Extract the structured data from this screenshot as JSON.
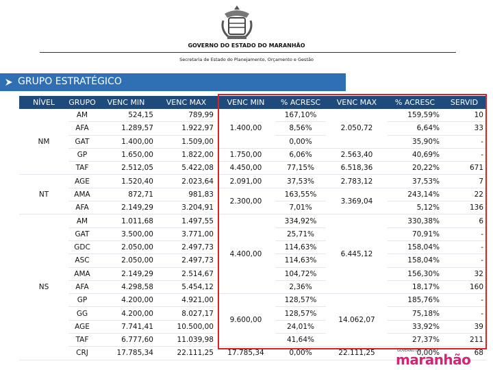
{
  "header": {
    "title": "GOVERNO DO ESTADO DO MARANHÃO",
    "subtitle": "Secretaria de Estado do Planejamento, Orçamento e Gestão"
  },
  "section": {
    "title": "GRUPO ESTRATÉGICO"
  },
  "table": {
    "columns": [
      "NÍVEL",
      "GRUPO",
      "VENC MIN",
      "VENC MAX",
      "VENC MIN",
      "% ACRESC",
      "VENC MAX",
      "% ACRESC",
      "SERVID"
    ],
    "rows": [
      [
        "NM",
        "AM",
        "524,15",
        "789,99",
        "1.400,00",
        "167,10%",
        "2.050,72",
        "159,59%",
        "10"
      ],
      [
        null,
        "AFA",
        "1.289,57",
        "1.922,97",
        null,
        "8,56%",
        null,
        "6,64%",
        "33"
      ],
      [
        null,
        "GAT",
        "1.400,00",
        "1.509,00",
        null,
        "0,00%",
        null,
        "35,90%",
        "-"
      ],
      [
        null,
        "GP",
        "1.650,00",
        "1.822,00",
        "1.750,00",
        "6,06%",
        "2.563,40",
        "40,69%",
        "-"
      ],
      [
        null,
        "TAF",
        "2.512,05",
        "5.422,08",
        "4.450,00",
        "77,15%",
        "6.518,36",
        "20,22%",
        "671"
      ],
      [
        "NT",
        "AGE",
        "1.520,40",
        "2.023,64",
        "2.091,00",
        "37,53%",
        "2.783,12",
        "37,53%",
        "7"
      ],
      [
        null,
        "AMA",
        "872,71",
        "981,83",
        "2.300,00",
        "163,55%",
        "3.369,04",
        "243,14%",
        "22"
      ],
      [
        null,
        "AFA",
        "2.149,29",
        "3.204,91",
        null,
        "7,01%",
        null,
        "5,12%",
        "136"
      ],
      [
        "NS",
        "AM",
        "1.011,68",
        "1.497,55",
        "4.400,00",
        "334,92%",
        "6.445,12",
        "330,38%",
        "6"
      ],
      [
        null,
        "GAT",
        "3.500,00",
        "3.771,00",
        null,
        "25,71%",
        null,
        "70,91%",
        "-"
      ],
      [
        null,
        "GDC",
        "2.050,00",
        "2.497,73",
        null,
        "114,63%",
        null,
        "158,04%",
        "-"
      ],
      [
        null,
        "ASC",
        "2.050,00",
        "2.497,73",
        null,
        "114,63%",
        null,
        "158,04%",
        "-"
      ],
      [
        null,
        "AMA",
        "2.149,29",
        "2.514,67",
        null,
        "104,72%",
        null,
        "156,30%",
        "32"
      ],
      [
        null,
        "AFA",
        "4.298,58",
        "5.454,12",
        null,
        "2,36%",
        null,
        "18,17%",
        "160"
      ],
      [
        null,
        "GP",
        "4.200,00",
        "4.921,00",
        "9.600,00",
        "128,57%",
        "14.062,07",
        "185,76%",
        "-"
      ],
      [
        null,
        "GG",
        "4.200,00",
        "8.027,17",
        null,
        "128,57%",
        null,
        "75,18%",
        "-"
      ],
      [
        null,
        "AGE",
        "7.741,41",
        "10.500,00",
        null,
        "24,01%",
        null,
        "33,92%",
        "39"
      ],
      [
        null,
        "TAF",
        "6.777,60",
        "11.039,98",
        null,
        "41,64%",
        null,
        "27,37%",
        "211"
      ],
      [
        null,
        "CRJ",
        "17.785,34",
        "22.111,25",
        "17.785,34",
        "0,00%",
        "22.111,25",
        "0,00%",
        "68"
      ]
    ]
  },
  "footer_logo": {
    "top": "GOVERNO DO",
    "name": "maranhão"
  }
}
